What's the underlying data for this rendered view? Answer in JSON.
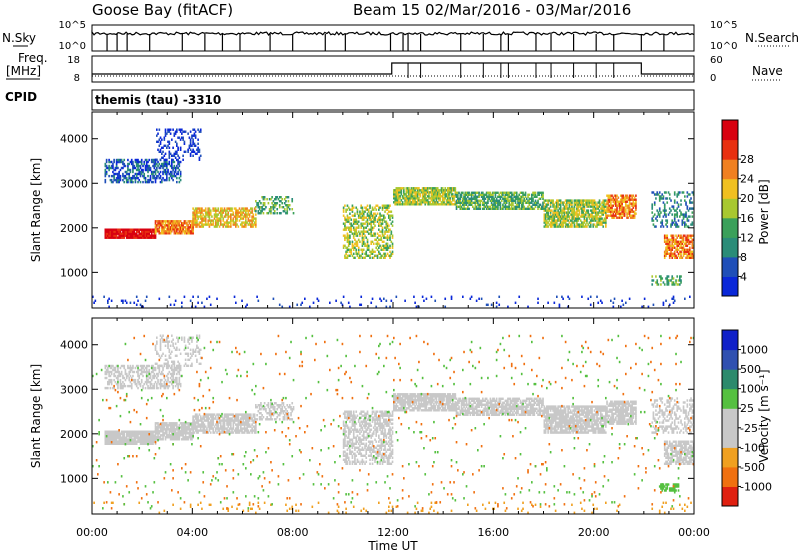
{
  "header": {
    "title_left": "Goose Bay (fitACF)",
    "title_right": "Beam 15  02/Mar/2016 - 03/Mar/2016"
  },
  "labels": {
    "nsky": "N.Sky",
    "nsearch": "N.Search",
    "freq_line1": "Freq.",
    "freq_line2": "[MHz]",
    "nave": "Nave",
    "cpid": "CPID",
    "cpid_value": "themis (tau) -3310",
    "nsky_ticks": [
      "10^5",
      "10^0"
    ],
    "nsearch_ticks": [
      "10^5",
      "10^0"
    ],
    "freq_ticks": [
      "18",
      "8"
    ],
    "nave_ticks": [
      "60",
      "0"
    ]
  },
  "colors": {
    "power": [
      "#0a28d8",
      "#1f4fb8",
      "#2a8c78",
      "#3aa05a",
      "#a8c830",
      "#f0c020",
      "#f08020",
      "#e83010",
      "#d80010"
    ],
    "velocity": [
      "#1020c8",
      "#3050b0",
      "#2c8a6c",
      "#55c040",
      "#c8c8c8",
      "#c8c8c8",
      "#f0a020",
      "#f07010",
      "#e02010"
    ],
    "grey": "#c8c8c8"
  },
  "chart_data": [
    {
      "type": "heatmap",
      "quantity": "power",
      "ylabel": "Slant Range [km]",
      "yticks": [
        1000,
        2000,
        3000,
        4000
      ],
      "ylim": [
        200,
        4600
      ],
      "xlim_hours": [
        0,
        24
      ],
      "colorbar": {
        "label": "Power [dB]",
        "ticks": [
          "4",
          "8",
          "12",
          "16",
          "20",
          "24",
          "28"
        ]
      },
      "regions": [
        {
          "t": [
            0.5,
            2.5
          ],
          "r": [
            1750,
            1950
          ],
          "c": 8,
          "d": 0.95
        },
        {
          "t": [
            2.5,
            4.0
          ],
          "r": [
            1850,
            2150
          ],
          "c": 6,
          "d": 0.85
        },
        {
          "t": [
            4.0,
            6.5
          ],
          "r": [
            2000,
            2450
          ],
          "c": 5,
          "d": 0.7
        },
        {
          "t": [
            6.5,
            8.0
          ],
          "r": [
            2300,
            2700
          ],
          "c": 3,
          "d": 0.4
        },
        {
          "t": [
            0.5,
            3.5
          ],
          "r": [
            3000,
            3500
          ],
          "c": 1,
          "d": 0.5
        },
        {
          "t": [
            2.5,
            4.3
          ],
          "r": [
            3500,
            4200
          ],
          "c": 0,
          "d": 0.25
        },
        {
          "t": [
            10.0,
            12.0
          ],
          "r": [
            1300,
            2500
          ],
          "c": 4,
          "d": 0.5
        },
        {
          "t": [
            12.0,
            14.5
          ],
          "r": [
            2500,
            2900
          ],
          "c": 4,
          "d": 0.8
        },
        {
          "t": [
            14.5,
            18.0
          ],
          "r": [
            2400,
            2800
          ],
          "c": 3,
          "d": 0.7
        },
        {
          "t": [
            18.0,
            20.5
          ],
          "r": [
            2000,
            2600
          ],
          "c": 4,
          "d": 0.75
        },
        {
          "t": [
            20.5,
            21.7
          ],
          "r": [
            2200,
            2700
          ],
          "c": 6,
          "d": 0.75
        },
        {
          "t": [
            22.8,
            24.0
          ],
          "r": [
            1300,
            1800
          ],
          "c": 6,
          "d": 0.7
        },
        {
          "t": [
            22.3,
            24.0
          ],
          "r": [
            2000,
            2800
          ],
          "c": 2,
          "d": 0.3
        },
        {
          "t": [
            22.3,
            23.5
          ],
          "r": [
            700,
            900
          ],
          "c": 3,
          "d": 0.4
        },
        {
          "t": [
            0.0,
            24.0
          ],
          "r": [
            200,
            450
          ],
          "c": 0,
          "d": 0.05
        }
      ]
    },
    {
      "type": "heatmap",
      "quantity": "velocity",
      "ylabel": "Slant Range [km]",
      "yticks": [
        1000,
        2000,
        3000,
        4000
      ],
      "ylim": [
        200,
        4600
      ],
      "xlim_hours": [
        0,
        24
      ],
      "xticks": [
        "00:00",
        "04:00",
        "08:00",
        "12:00",
        "16:00",
        "20:00",
        "00:00"
      ],
      "xlabel": "Time UT",
      "colorbar": {
        "label": "Velocity [m s⁻¹]",
        "ticks": [
          "1000",
          "500",
          "100",
          "25",
          "-25",
          "-100",
          "-500",
          "-1000"
        ]
      },
      "regions": [
        {
          "t": [
            0.5,
            2.5
          ],
          "r": [
            1750,
            2050
          ],
          "c": 4,
          "d": 0.95
        },
        {
          "t": [
            2.5,
            4.0
          ],
          "r": [
            1850,
            2250
          ],
          "c": 4,
          "d": 0.85
        },
        {
          "t": [
            4.0,
            6.5
          ],
          "r": [
            2000,
            2450
          ],
          "c": 4,
          "d": 0.75
        },
        {
          "t": [
            6.5,
            8.0
          ],
          "r": [
            2300,
            2700
          ],
          "c": 4,
          "d": 0.45
        },
        {
          "t": [
            0.5,
            3.5
          ],
          "r": [
            3000,
            3500
          ],
          "c": 4,
          "d": 0.5
        },
        {
          "t": [
            2.5,
            4.3
          ],
          "r": [
            3500,
            4200
          ],
          "c": 4,
          "d": 0.25
        },
        {
          "t": [
            10.0,
            12.0
          ],
          "r": [
            1300,
            2500
          ],
          "c": 4,
          "d": 0.5
        },
        {
          "t": [
            12.0,
            14.5
          ],
          "r": [
            2500,
            2900
          ],
          "c": 4,
          "d": 0.85
        },
        {
          "t": [
            14.5,
            18.0
          ],
          "r": [
            2400,
            2800
          ],
          "c": 4,
          "d": 0.75
        },
        {
          "t": [
            18.0,
            20.5
          ],
          "r": [
            2000,
            2600
          ],
          "c": 4,
          "d": 0.8
        },
        {
          "t": [
            20.5,
            21.7
          ],
          "r": [
            2200,
            2700
          ],
          "c": 4,
          "d": 0.8
        },
        {
          "t": [
            22.8,
            24.0
          ],
          "r": [
            1300,
            1800
          ],
          "c": 4,
          "d": 0.7
        },
        {
          "t": [
            22.3,
            24.0
          ],
          "r": [
            2000,
            2800
          ],
          "c": 4,
          "d": 0.3
        },
        {
          "t": [
            22.6,
            23.4
          ],
          "r": [
            700,
            850
          ],
          "c": 3,
          "d": 0.6
        },
        {
          "t": [
            0.0,
            24.0
          ],
          "r": [
            200,
            450
          ],
          "c": 6,
          "d": 0.05
        },
        {
          "t": [
            0.0,
            24.0
          ],
          "r": [
            300,
            4200
          ],
          "c": 7,
          "d": 0.01
        },
        {
          "t": [
            0.0,
            24.0
          ],
          "r": [
            300,
            4200
          ],
          "c": 3,
          "d": 0.01
        }
      ]
    }
  ]
}
